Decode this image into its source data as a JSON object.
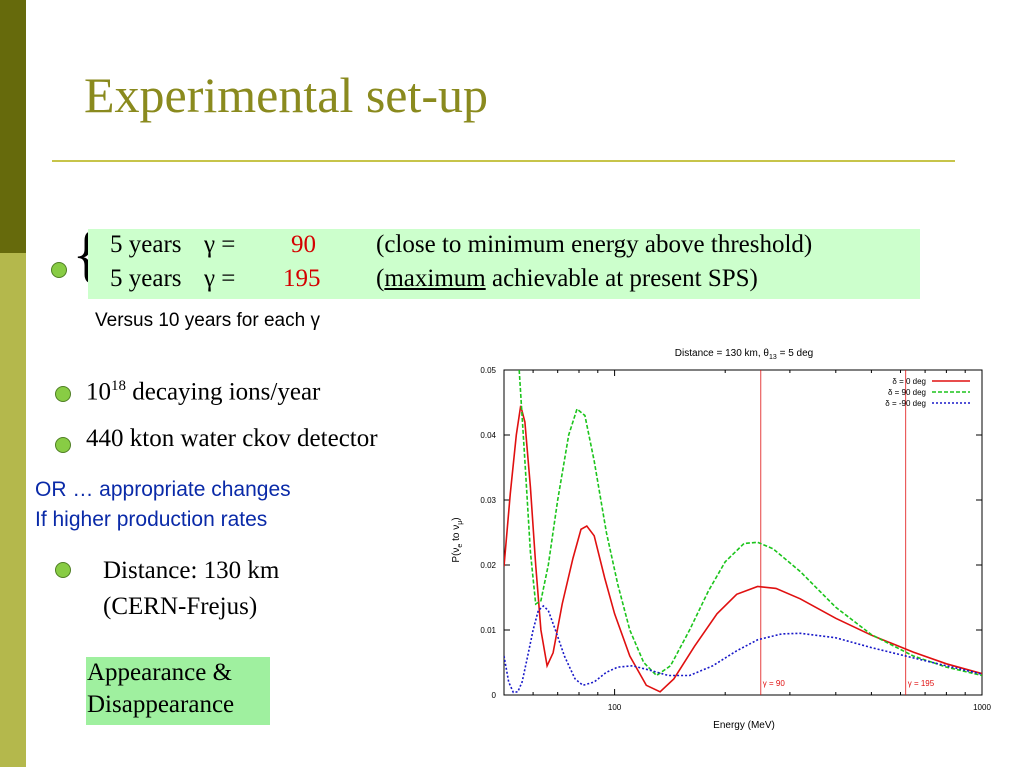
{
  "title": "Experimental set-up",
  "setup_rows": [
    {
      "years": "5 years",
      "gamma_eq": "γ =",
      "gamma": "90",
      "note": "(close to minimum energy above threshold)"
    },
    {
      "years": "5 years",
      "gamma_eq": "γ =",
      "gamma": "195",
      "note_open": "(",
      "note_underlined": "maximum",
      "note_rest": " achievable at present  SPS)"
    }
  ],
  "brace": "{",
  "versus": "Versus 10 years for each γ",
  "ions": {
    "base": "10",
    "exp": "18",
    "rest": " decaying ions/year"
  },
  "detector": "440 kton water ckov detector",
  "or_line1": "OR … appropriate changes",
  "or_line2": "If higher production rates",
  "distance_line1": "Distance: 130 km",
  "distance_line2": "(CERN-Frejus)",
  "appearance_line1": "Appearance &",
  "appearance_line2": "Disappearance",
  "chart_data": {
    "type": "line",
    "title": "Distance = 130 km, θ13 = 5 deg",
    "title_main": "Distance = 130 km, θ",
    "title_sub": "13",
    "title_end": " = 5 deg",
    "xlabel": "Energy (MeV)",
    "ylabel": "P(νe to νμ)",
    "ylabel_main": "P(ν",
    "ylabel_sub1": "e",
    "ylabel_mid": " to ν",
    "ylabel_sub2": "μ",
    "ylabel_end": ")",
    "x_scale": "log",
    "xlim": [
      50,
      1000
    ],
    "ylim": [
      0,
      0.05
    ],
    "xticks": [
      {
        "value": 100,
        "label": "100"
      },
      {
        "value": 1000,
        "label": "1000"
      }
    ],
    "yticks": [
      {
        "value": 0,
        "label": "0"
      },
      {
        "value": 0.01,
        "label": "0.01"
      },
      {
        "value": 0.02,
        "label": "0.02"
      },
      {
        "value": 0.03,
        "label": "0.03"
      },
      {
        "value": 0.04,
        "label": "0.04"
      },
      {
        "value": 0.05,
        "label": "0.05"
      }
    ],
    "legend_position": "top-right",
    "series": [
      {
        "name": "δ = 0 deg",
        "color": "#e01010",
        "style": "solid",
        "points": [
          [
            50,
            0.0198
          ],
          [
            52,
            0.031
          ],
          [
            54,
            0.04
          ],
          [
            55.5,
            0.0445
          ],
          [
            57,
            0.042
          ],
          [
            59,
            0.032
          ],
          [
            61,
            0.02
          ],
          [
            63,
            0.01
          ],
          [
            65.5,
            0.0045
          ],
          [
            68,
            0.0065
          ],
          [
            72,
            0.014
          ],
          [
            77,
            0.021
          ],
          [
            81,
            0.0255
          ],
          [
            84,
            0.026
          ],
          [
            88,
            0.0245
          ],
          [
            94,
            0.018
          ],
          [
            100,
            0.0125
          ],
          [
            110,
            0.006
          ],
          [
            122,
            0.0015
          ],
          [
            133,
            0.0005
          ],
          [
            145,
            0.0025
          ],
          [
            165,
            0.0075
          ],
          [
            190,
            0.0125
          ],
          [
            215,
            0.0155
          ],
          [
            245,
            0.0167
          ],
          [
            275,
            0.0164
          ],
          [
            320,
            0.0148
          ],
          [
            400,
            0.0118
          ],
          [
            500,
            0.0092
          ],
          [
            650,
            0.0066
          ],
          [
            800,
            0.0048
          ],
          [
            1000,
            0.0033
          ]
        ]
      },
      {
        "name": "δ = 90 deg",
        "color": "#1cc41c",
        "style": "dashed",
        "points": [
          [
            55,
            0.05
          ],
          [
            57,
            0.036
          ],
          [
            59,
            0.022
          ],
          [
            61,
            0.014
          ],
          [
            63,
            0.0145
          ],
          [
            66,
            0.02
          ],
          [
            70,
            0.03
          ],
          [
            75,
            0.04
          ],
          [
            79,
            0.044
          ],
          [
            83,
            0.043
          ],
          [
            88,
            0.036
          ],
          [
            95,
            0.025
          ],
          [
            102,
            0.017
          ],
          [
            110,
            0.01
          ],
          [
            120,
            0.005
          ],
          [
            130,
            0.003
          ],
          [
            142,
            0.0045
          ],
          [
            160,
            0.01
          ],
          [
            180,
            0.016
          ],
          [
            200,
            0.0205
          ],
          [
            225,
            0.0233
          ],
          [
            245,
            0.0235
          ],
          [
            270,
            0.0225
          ],
          [
            320,
            0.019
          ],
          [
            400,
            0.0135
          ],
          [
            500,
            0.0093
          ],
          [
            650,
            0.006
          ],
          [
            800,
            0.0043
          ],
          [
            1000,
            0.003
          ]
        ]
      },
      {
        "name": "δ = -90 deg",
        "color": "#1818c8",
        "style": "dotted",
        "points": [
          [
            50,
            0.006
          ],
          [
            51.5,
            0.002
          ],
          [
            53,
            0.0004
          ],
          [
            54.5,
            0.0005
          ],
          [
            56,
            0.002
          ],
          [
            58,
            0.006
          ],
          [
            60,
            0.01
          ],
          [
            62,
            0.013
          ],
          [
            64,
            0.0137
          ],
          [
            66,
            0.013
          ],
          [
            69,
            0.01
          ],
          [
            73,
            0.006
          ],
          [
            78,
            0.0025
          ],
          [
            82,
            0.0015
          ],
          [
            88,
            0.002
          ],
          [
            95,
            0.0035
          ],
          [
            102,
            0.0043
          ],
          [
            112,
            0.0045
          ],
          [
            125,
            0.0038
          ],
          [
            140,
            0.003
          ],
          [
            160,
            0.003
          ],
          [
            185,
            0.0045
          ],
          [
            215,
            0.0068
          ],
          [
            245,
            0.0085
          ],
          [
            285,
            0.0094
          ],
          [
            320,
            0.0095
          ],
          [
            400,
            0.0088
          ],
          [
            500,
            0.0073
          ],
          [
            650,
            0.0057
          ],
          [
            800,
            0.0045
          ],
          [
            1000,
            0.0032
          ]
        ]
      }
    ],
    "markers": [
      {
        "x": 250,
        "label": "γ = 90"
      },
      {
        "x": 620,
        "label": "γ = 195"
      }
    ]
  }
}
